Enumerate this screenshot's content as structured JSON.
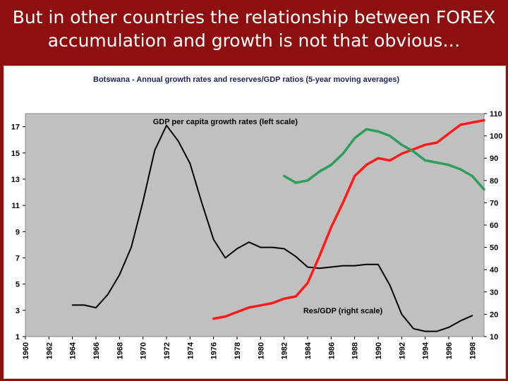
{
  "slide": {
    "title_line1": "But in other countries the relationship between FOREX",
    "title_line2": "accumulation and growth is not that obvious…"
  },
  "colors": {
    "background": "#8e0f0f",
    "plot_area": "#c0c0c0",
    "gdp_line": "#000000",
    "reserves_line": "#ff1a1a",
    "third_line": "#2e9e5b"
  },
  "chart_data": {
    "type": "line",
    "title": "Botswana - Annual growth rates and reserves/GDP ratios (5-year moving averages)",
    "xlim": [
      1960,
      1999
    ],
    "x_ticks": [
      "1960",
      "1962",
      "1964",
      "1966",
      "1968",
      "1970",
      "1972",
      "1974",
      "1976",
      "1978",
      "1980",
      "1982",
      "1984",
      "1986",
      "1988",
      "1990",
      "1992",
      "1994",
      "1996",
      "1998"
    ],
    "left_axis": {
      "ylim": [
        1,
        18
      ],
      "ticks": [
        "1",
        "3",
        "5",
        "7",
        "9",
        "11",
        "13",
        "15",
        "17"
      ]
    },
    "right_axis": {
      "ylim": [
        10,
        110
      ],
      "ticks": [
        "10",
        "20",
        "30",
        "40",
        "50",
        "60",
        "70",
        "80",
        "90",
        "100",
        "110"
      ]
    },
    "grid": false,
    "annotations": [
      {
        "text": "GDP per capita growth rates (left scale)",
        "x": 1977,
        "y_left": 17.2
      },
      {
        "text": "Res/GDP (right scale)",
        "x": 1987,
        "y_right": 20.5
      }
    ],
    "series": [
      {
        "name": "GDP per capita growth rates (left scale)",
        "axis": "left",
        "color": "#000000",
        "x": [
          1964,
          1965,
          1966,
          1967,
          1968,
          1969,
          1970,
          1971,
          1972,
          1973,
          1974,
          1975,
          1976,
          1977,
          1978,
          1979,
          1980,
          1981,
          1982,
          1983,
          1984,
          1985,
          1986,
          1987,
          1988,
          1989,
          1990,
          1991,
          1992,
          1993,
          1994,
          1995,
          1996,
          1997,
          1998
        ],
        "y": [
          3.4,
          3.4,
          3.2,
          4.2,
          5.7,
          7.8,
          11.3,
          15.2,
          17.1,
          15.9,
          14.2,
          11.2,
          8.4,
          7.0,
          7.7,
          8.2,
          7.8,
          7.8,
          7.7,
          7.1,
          6.3,
          6.2,
          6.3,
          6.4,
          6.4,
          6.5,
          6.5,
          4.9,
          2.7,
          1.6,
          1.4,
          1.4,
          1.7,
          2.2,
          2.6
        ]
      },
      {
        "name": "Res/GDP (right scale)",
        "axis": "right",
        "color": "#ff1a1a",
        "x": [
          1976,
          1977,
          1978,
          1979,
          1980,
          1981,
          1982,
          1983,
          1984,
          1985,
          1986,
          1987,
          1988,
          1989,
          1990,
          1991,
          1992,
          1993,
          1994,
          1995,
          1996,
          1997,
          1998,
          1999
        ],
        "y": [
          18,
          19,
          21,
          23,
          24,
          25,
          27,
          28,
          34,
          46,
          59,
          70,
          82,
          87,
          90,
          89,
          92,
          94,
          96,
          97,
          101,
          105,
          106,
          107
        ]
      },
      {
        "axis": "right",
        "color": "#2e9e5b",
        "x": [
          1982,
          1983,
          1984,
          1985,
          1986,
          1987,
          1988,
          1989,
          1990,
          1991,
          1992,
          1993,
          1994,
          1995,
          1996,
          1997,
          1998,
          1999
        ],
        "y": [
          82,
          79,
          80,
          84,
          87,
          92,
          99,
          103,
          102,
          100,
          96,
          93,
          89,
          88,
          87,
          85,
          82,
          76
        ]
      }
    ]
  }
}
